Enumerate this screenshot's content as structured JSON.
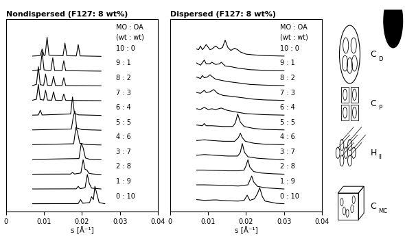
{
  "chart_data": [
    {
      "type": "line",
      "title": "Nondispersed (F127: 8 wt%)",
      "x_label": "s [Å⁻¹]",
      "annotations": [
        "MO : OA",
        "(wt : wt)"
      ],
      "xlim": [
        0,
        0.04
      ],
      "xticks": [
        0,
        0.01,
        0.02,
        0.03,
        0.04
      ],
      "ylim": [
        -0.5,
        12.5
      ],
      "tick_labels": "x",
      "stacked": true,
      "series": [
        {
          "name": "10 : 0",
          "color": "#000000",
          "x": [
            0.007,
            0.009,
            0.0095,
            0.01,
            0.0103,
            0.0108,
            0.0113,
            0.015,
            0.0155,
            0.016,
            0.0185,
            0.019,
            0.0195,
            0.025
          ],
          "values": [
            0.02,
            0.05,
            0.5,
            0.05,
            0.1,
            1.3,
            0.08,
            0.04,
            0.9,
            0.04,
            0.03,
            0.8,
            0.03,
            0
          ]
        },
        {
          "name": "9 : 1",
          "color": "#000000",
          "x": [
            0.007,
            0.009,
            0.0095,
            0.01,
            0.0118,
            0.0123,
            0.0128,
            0.0147,
            0.0152,
            0.0157,
            0.025
          ],
          "values": [
            0.03,
            0.1,
            1.3,
            0.08,
            0.04,
            0.9,
            0.04,
            0.03,
            0.7,
            0.03,
            0
          ]
        },
        {
          "name": "8 : 2",
          "color": "#000000",
          "x": [
            0.007,
            0.008,
            0.0085,
            0.009,
            0.0099,
            0.0104,
            0.0109,
            0.012,
            0.0125,
            0.013,
            0.0147,
            0.0152,
            0.0157,
            0.025
          ],
          "values": [
            0.03,
            0.1,
            1.3,
            0.08,
            0.04,
            0.8,
            0.04,
            0.03,
            0.65,
            0.03,
            0.02,
            0.55,
            0.02,
            0
          ]
        },
        {
          "name": "7 : 3",
          "color": "#000000",
          "x": [
            0.007,
            0.008,
            0.0085,
            0.009,
            0.0099,
            0.0104,
            0.0109,
            0.012,
            0.0125,
            0.013,
            0.0147,
            0.0152,
            0.0157,
            0.025
          ],
          "values": [
            0.03,
            0.1,
            1.1,
            0.08,
            0.04,
            0.7,
            0.04,
            0.03,
            0.6,
            0.03,
            0.02,
            0.45,
            0.02,
            0
          ]
        },
        {
          "name": "6 : 4",
          "color": "#000000",
          "x": [
            0.007,
            0.0085,
            0.009,
            0.0095,
            0.017,
            0.0175,
            0.018,
            0.019,
            0.025
          ],
          "values": [
            0.02,
            0.03,
            0.35,
            0.03,
            0.1,
            1.25,
            0.15,
            0.04,
            0
          ]
        },
        {
          "name": "5 : 5",
          "color": "#000000",
          "x": [
            0.007,
            0.0172,
            0.0177,
            0.0181,
            0.0186,
            0.02,
            0.025
          ],
          "values": [
            0.02,
            0.08,
            0.9,
            1.3,
            0.15,
            0.04,
            0
          ]
        },
        {
          "name": "4 : 6",
          "color": "#000000",
          "x": [
            0.007,
            0.0178,
            0.0184,
            0.0188,
            0.0194,
            0.021,
            0.025
          ],
          "values": [
            0.02,
            0.08,
            1.2,
            0.9,
            0.12,
            0.03,
            0
          ]
        },
        {
          "name": "3 : 7",
          "color": "#000000",
          "x": [
            0.007,
            0.0192,
            0.0198,
            0.0203,
            0.0209,
            0.022,
            0.025
          ],
          "values": [
            0.02,
            0.08,
            1.1,
            0.8,
            0.12,
            0.03,
            0
          ]
        },
        {
          "name": "2 : 8",
          "color": "#000000",
          "x": [
            0.007,
            0.017,
            0.0175,
            0.018,
            0.0197,
            0.0203,
            0.0208,
            0.0213,
            0.0218,
            0.023,
            0.025
          ],
          "values": [
            0.02,
            0.03,
            0.15,
            0.03,
            0.1,
            1.0,
            0.35,
            0.3,
            0.08,
            0.03,
            0
          ]
        },
        {
          "name": "1 : 9",
          "color": "#000000",
          "x": [
            0.007,
            0.0185,
            0.019,
            0.0195,
            0.0208,
            0.0214,
            0.0219,
            0.0225,
            0.025
          ],
          "values": [
            0.02,
            0.03,
            0.2,
            0.04,
            0.1,
            1.0,
            0.4,
            0.08,
            0.02
          ]
        },
        {
          "name": "0 : 10",
          "color": "#000000",
          "x": [
            0.007,
            0.019,
            0.0196,
            0.0202,
            0.022,
            0.0225,
            0.023,
            0.0234,
            0.024,
            0.0245,
            0.026
          ],
          "values": [
            0.02,
            0.03,
            0.3,
            0.05,
            0.1,
            0.5,
            0.3,
            1.2,
            0.6,
            0.1,
            0.02
          ]
        }
      ]
    },
    {
      "type": "line",
      "title": "Dispersed (F127: 8 wt%)",
      "x_label": "s [Å⁻¹]",
      "annotations": [
        "MO : OA",
        "(wt : wt)"
      ],
      "xlim": [
        0,
        0.04
      ],
      "xticks": [
        0,
        0.01,
        0.02,
        0.03,
        0.04
      ],
      "ylim": [
        -0.5,
        12.5
      ],
      "tick_labels": "x",
      "stacked": true,
      "series": [
        {
          "name": "10 : 0",
          "color": "#000000",
          "x": [
            0.007,
            0.0075,
            0.008,
            0.0085,
            0.009,
            0.0095,
            0.0105,
            0.011,
            0.012,
            0.013,
            0.0138,
            0.0145,
            0.0152,
            0.016,
            0.017,
            0.0178,
            0.0185,
            0.02,
            0.022,
            0.025,
            0.03
          ],
          "values": [
            0.5,
            0.45,
            0.7,
            0.45,
            0.6,
            0.8,
            0.45,
            0.5,
            0.7,
            0.5,
            0.6,
            1.1,
            0.6,
            0.4,
            0.55,
            0.45,
            0.3,
            0.15,
            0.1,
            0.05,
            0.02
          ]
        },
        {
          "name": "9 : 1",
          "color": "#000000",
          "x": [
            0.007,
            0.008,
            0.009,
            0.0095,
            0.0105,
            0.011,
            0.012,
            0.013,
            0.0135,
            0.0145,
            0.016,
            0.018,
            0.021,
            0.025,
            0.03
          ],
          "values": [
            0.55,
            0.4,
            0.75,
            0.5,
            0.5,
            0.6,
            0.45,
            0.5,
            0.6,
            0.35,
            0.3,
            0.2,
            0.1,
            0.05,
            0.02
          ]
        },
        {
          "name": "8 : 2",
          "color": "#000000",
          "x": [
            0.007,
            0.008,
            0.0085,
            0.009,
            0.0098,
            0.0105,
            0.0112,
            0.012,
            0.013,
            0.015,
            0.018,
            0.021,
            0.025,
            0.03
          ],
          "values": [
            0.6,
            0.5,
            0.7,
            0.55,
            0.6,
            0.75,
            0.6,
            0.45,
            0.4,
            0.3,
            0.2,
            0.1,
            0.05,
            0.02
          ]
        },
        {
          "name": "7 : 3",
          "color": "#000000",
          "x": [
            0.007,
            0.008,
            0.009,
            0.0095,
            0.0105,
            0.0115,
            0.0125,
            0.014,
            0.016,
            0.019,
            0.022,
            0.025,
            0.03
          ],
          "values": [
            0.55,
            0.5,
            0.7,
            0.55,
            0.6,
            0.75,
            0.5,
            0.35,
            0.3,
            0.2,
            0.1,
            0.05,
            0.02
          ]
        },
        {
          "name": "6 : 4",
          "color": "#000000",
          "x": [
            0.007,
            0.008,
            0.009,
            0.01,
            0.011,
            0.012,
            0.0135,
            0.015,
            0.017,
            0.02,
            0.025,
            0.03
          ],
          "values": [
            0.45,
            0.4,
            0.55,
            0.4,
            0.45,
            0.4,
            0.5,
            0.35,
            0.25,
            0.12,
            0.05,
            0.02
          ]
        },
        {
          "name": "5 : 5",
          "color": "#000000",
          "x": [
            0.007,
            0.0085,
            0.009,
            0.0095,
            0.011,
            0.014,
            0.0165,
            0.0172,
            0.0178,
            0.0185,
            0.0195,
            0.022,
            0.025,
            0.03
          ],
          "values": [
            0.35,
            0.3,
            0.45,
            0.3,
            0.3,
            0.25,
            0.25,
            0.5,
            1.1,
            0.55,
            0.25,
            0.12,
            0.05,
            0.02
          ]
        },
        {
          "name": "4 : 6",
          "color": "#000000",
          "x": [
            0.007,
            0.009,
            0.011,
            0.014,
            0.017,
            0.018,
            0.0185,
            0.019,
            0.0198,
            0.022,
            0.025,
            0.03
          ],
          "values": [
            0.3,
            0.35,
            0.3,
            0.25,
            0.25,
            0.5,
            0.8,
            0.5,
            0.25,
            0.12,
            0.05,
            0.02
          ]
        },
        {
          "name": "3 : 7",
          "color": "#000000",
          "x": [
            0.007,
            0.009,
            0.012,
            0.015,
            0.0178,
            0.0185,
            0.019,
            0.0196,
            0.0205,
            0.023,
            0.026,
            0.03
          ],
          "values": [
            0.3,
            0.35,
            0.3,
            0.25,
            0.25,
            0.5,
            1.1,
            0.5,
            0.2,
            0.1,
            0.05,
            0.02
          ]
        },
        {
          "name": "2 : 8",
          "color": "#000000",
          "x": [
            0.007,
            0.009,
            0.012,
            0.015,
            0.018,
            0.0195,
            0.02,
            0.0205,
            0.021,
            0.022,
            0.024,
            0.027,
            0.03
          ],
          "values": [
            0.3,
            0.3,
            0.28,
            0.25,
            0.25,
            0.3,
            0.6,
            1.0,
            0.5,
            0.2,
            0.1,
            0.05,
            0.02
          ]
        },
        {
          "name": "1 : 9",
          "color": "#000000",
          "x": [
            0.007,
            0.009,
            0.012,
            0.015,
            0.018,
            0.0205,
            0.021,
            0.0215,
            0.022,
            0.023,
            0.025,
            0.028,
            0.03
          ],
          "values": [
            0.3,
            0.3,
            0.28,
            0.25,
            0.22,
            0.3,
            0.6,
            0.9,
            0.5,
            0.2,
            0.1,
            0.05,
            0.02
          ]
        },
        {
          "name": "0 : 10",
          "color": "#000000",
          "x": [
            0.007,
            0.009,
            0.012,
            0.015,
            0.018,
            0.0195,
            0.0203,
            0.021,
            0.0222,
            0.023,
            0.0236,
            0.0243,
            0.025,
            0.028,
            0.03
          ],
          "values": [
            0.3,
            0.25,
            0.28,
            0.22,
            0.2,
            0.25,
            0.6,
            0.25,
            0.35,
            0.7,
            1.1,
            0.5,
            0.2,
            0.05,
            0.02
          ]
        }
      ]
    }
  ],
  "phases": [
    {
      "symbol": "C",
      "subscript": "D"
    },
    {
      "symbol": "C",
      "subscript": "P"
    },
    {
      "symbol": "H",
      "subscript": "II"
    },
    {
      "symbol": "C",
      "subscript": "MC"
    }
  ]
}
